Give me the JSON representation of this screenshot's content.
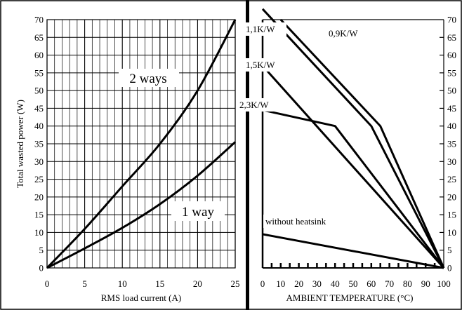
{
  "chart_data": [
    {
      "type": "line",
      "xlabel": "RMS load current (A)",
      "ylabel": "Total wasted power (W)",
      "xlim": [
        0,
        25
      ],
      "ylim": [
        0,
        70
      ],
      "x_ticks": [
        "0",
        "5",
        "10",
        "15",
        "20",
        "25"
      ],
      "y_ticks": [
        "0",
        "5",
        "10",
        "15",
        "20",
        "25",
        "30",
        "35",
        "40",
        "45",
        "50",
        "55",
        "60",
        "65",
        "70"
      ],
      "grid": true,
      "series": [
        {
          "name": "2 ways",
          "x": [
            0,
            5,
            10,
            15,
            20,
            25
          ],
          "values": [
            0,
            11,
            23,
            35,
            50,
            70
          ]
        },
        {
          "name": "1 way",
          "x": [
            0,
            5,
            10,
            15,
            20,
            25
          ],
          "values": [
            0,
            5.5,
            11.3,
            18,
            26,
            35.5
          ]
        }
      ]
    },
    {
      "type": "line",
      "xlabel": "AMBIENT TEMPERATURE (°C)",
      "xlim": [
        0,
        100
      ],
      "ylim": [
        0,
        70
      ],
      "x_ticks": [
        "0",
        "10",
        "20",
        "30",
        "40",
        "50",
        "60",
        "70",
        "80",
        "90",
        "100"
      ],
      "y_ticks": [
        "0",
        "5",
        "10",
        "15",
        "20",
        "25",
        "30",
        "35",
        "40",
        "45",
        "50",
        "55",
        "60",
        "65",
        "70"
      ],
      "series": [
        {
          "name": "0,9K/W",
          "x": [
            10,
            65,
            100
          ],
          "values": [
            70,
            40,
            0
          ]
        },
        {
          "name": "1,1K/W",
          "x": [
            0,
            60,
            100
          ],
          "values": [
            73,
            40,
            0
          ]
        },
        {
          "name": "1,5K/W",
          "x": [
            0,
            100
          ],
          "values": [
            57,
            0
          ]
        },
        {
          "name": "2,3K/W",
          "x": [
            0,
            40,
            100
          ],
          "values": [
            44.5,
            40,
            0
          ]
        },
        {
          "name": "without heatsink",
          "x": [
            0,
            100
          ],
          "values": [
            9.5,
            0
          ]
        }
      ]
    }
  ],
  "left_labels": {
    "two_ways": "2 ways",
    "one_way": "1 way"
  },
  "right_labels": {
    "k09": "0,9K/W",
    "k11": "1,1K/W",
    "k15": "1,5K/W",
    "k23": "2,3K/W",
    "no_heatsink": "without heatsink"
  }
}
